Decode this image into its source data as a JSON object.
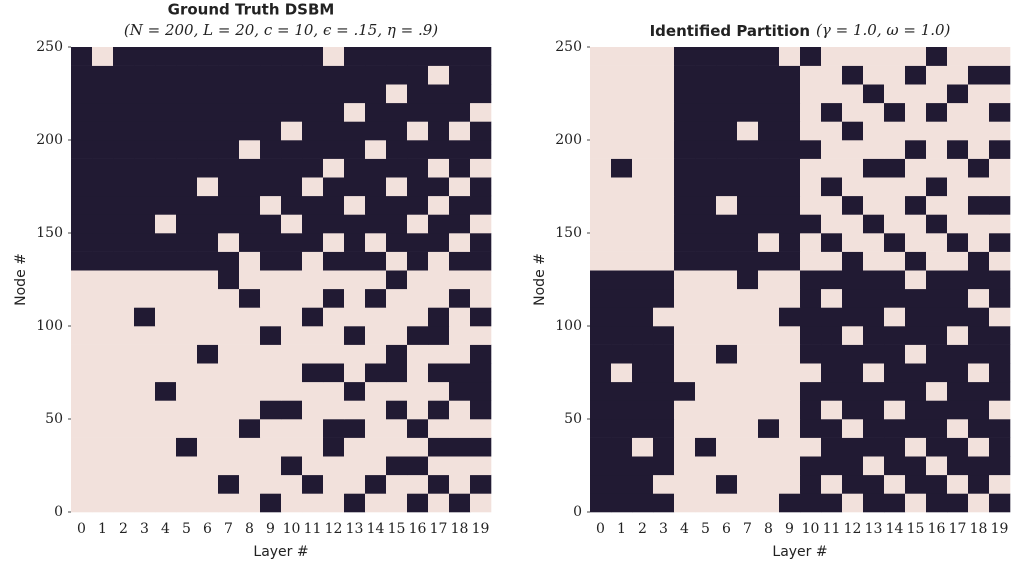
{
  "chart_data": [
    {
      "type": "heatmap",
      "title": "Ground Truth DSBM",
      "subtitle": "(N = 200, L = 20, c = 10, ϵ = .15, η = .9)",
      "x_label": "Layer #",
      "y_label": "Node #",
      "categories": [
        "0",
        "1",
        "2",
        "3",
        "4",
        "5",
        "6",
        "7",
        "8",
        "9",
        "10",
        "11",
        "12",
        "13",
        "14",
        "15",
        "16",
        "17",
        "18",
        "19"
      ],
      "ylim": [
        0,
        250
      ],
      "yticks": [
        0,
        50,
        100,
        150,
        200,
        250
      ],
      "colors": [
        "#f2e1dc",
        "#211a33"
      ],
      "values": [
        [
          0,
          0,
          0,
          0,
          0,
          0,
          0,
          0,
          0,
          1,
          0,
          0,
          0,
          1,
          0,
          0,
          1,
          0,
          1,
          0
        ],
        [
          0,
          0,
          0,
          0,
          0,
          0,
          0,
          1,
          0,
          0,
          0,
          1,
          0,
          0,
          1,
          0,
          0,
          1,
          0,
          1
        ],
        [
          0,
          0,
          0,
          0,
          0,
          0,
          0,
          0,
          0,
          0,
          1,
          0,
          0,
          0,
          0,
          1,
          1,
          0,
          0,
          0
        ],
        [
          0,
          0,
          0,
          0,
          0,
          1,
          0,
          0,
          0,
          0,
          0,
          0,
          1,
          0,
          0,
          0,
          0,
          1,
          1,
          1
        ],
        [
          0,
          0,
          0,
          0,
          0,
          0,
          0,
          0,
          1,
          0,
          0,
          0,
          1,
          1,
          0,
          0,
          1,
          0,
          0,
          0
        ],
        [
          0,
          0,
          0,
          0,
          0,
          0,
          0,
          0,
          0,
          1,
          1,
          0,
          0,
          0,
          0,
          1,
          0,
          1,
          0,
          1
        ],
        [
          0,
          0,
          0,
          0,
          1,
          0,
          0,
          0,
          0,
          0,
          0,
          0,
          0,
          1,
          0,
          0,
          0,
          0,
          1,
          1
        ],
        [
          0,
          0,
          0,
          0,
          0,
          0,
          0,
          0,
          0,
          0,
          0,
          1,
          1,
          0,
          1,
          1,
          0,
          1,
          1,
          1
        ],
        [
          0,
          0,
          0,
          0,
          0,
          0,
          1,
          0,
          0,
          0,
          0,
          0,
          0,
          0,
          0,
          1,
          0,
          0,
          0,
          1
        ],
        [
          0,
          0,
          0,
          0,
          0,
          0,
          0,
          0,
          0,
          1,
          0,
          0,
          0,
          1,
          0,
          0,
          1,
          1,
          0,
          0
        ],
        [
          0,
          0,
          0,
          1,
          0,
          0,
          0,
          0,
          0,
          0,
          0,
          1,
          0,
          0,
          0,
          0,
          0,
          1,
          0,
          1
        ],
        [
          0,
          0,
          0,
          0,
          0,
          0,
          0,
          0,
          1,
          0,
          0,
          0,
          1,
          0,
          1,
          0,
          0,
          0,
          1,
          0
        ],
        [
          0,
          0,
          0,
          0,
          0,
          0,
          0,
          1,
          0,
          0,
          0,
          0,
          0,
          0,
          0,
          1,
          0,
          0,
          0,
          0
        ],
        [
          1,
          1,
          1,
          1,
          1,
          1,
          1,
          1,
          0,
          1,
          1,
          0,
          1,
          1,
          1,
          0,
          1,
          0,
          1,
          1
        ],
        [
          1,
          1,
          1,
          1,
          1,
          1,
          1,
          0,
          1,
          1,
          1,
          1,
          0,
          1,
          0,
          1,
          1,
          1,
          0,
          1
        ],
        [
          1,
          1,
          1,
          1,
          0,
          1,
          1,
          1,
          1,
          1,
          0,
          1,
          1,
          1,
          1,
          1,
          0,
          1,
          1,
          0
        ],
        [
          1,
          1,
          1,
          1,
          1,
          1,
          1,
          1,
          1,
          0,
          1,
          1,
          1,
          0,
          1,
          1,
          1,
          0,
          1,
          1
        ],
        [
          1,
          1,
          1,
          1,
          1,
          1,
          0,
          1,
          1,
          1,
          1,
          0,
          1,
          1,
          1,
          0,
          1,
          1,
          0,
          1
        ],
        [
          1,
          1,
          1,
          1,
          1,
          1,
          1,
          1,
          1,
          1,
          1,
          1,
          0,
          1,
          1,
          1,
          1,
          0,
          1,
          0
        ],
        [
          1,
          1,
          1,
          1,
          1,
          1,
          1,
          1,
          0,
          1,
          1,
          1,
          1,
          1,
          0,
          1,
          1,
          1,
          1,
          1
        ],
        [
          1,
          1,
          1,
          1,
          1,
          1,
          1,
          1,
          1,
          1,
          0,
          1,
          1,
          1,
          1,
          1,
          0,
          1,
          0,
          1
        ],
        [
          1,
          1,
          1,
          1,
          1,
          1,
          1,
          1,
          1,
          1,
          1,
          1,
          1,
          0,
          1,
          1,
          1,
          1,
          1,
          0
        ],
        [
          1,
          1,
          1,
          1,
          1,
          1,
          1,
          1,
          1,
          1,
          1,
          1,
          1,
          1,
          1,
          0,
          1,
          1,
          1,
          1
        ],
        [
          1,
          1,
          1,
          1,
          1,
          1,
          1,
          1,
          1,
          1,
          1,
          1,
          1,
          1,
          1,
          1,
          1,
          0,
          1,
          1
        ],
        [
          1,
          0,
          1,
          1,
          1,
          1,
          1,
          1,
          1,
          1,
          1,
          1,
          0,
          1,
          1,
          1,
          1,
          1,
          1,
          1
        ]
      ]
    },
    {
      "type": "heatmap",
      "title": "Identified Partition",
      "subtitle": "(γ = 1.0, ω = 1.0)",
      "x_label": "Layer #",
      "y_label": "Node #",
      "categories": [
        "0",
        "1",
        "2",
        "3",
        "4",
        "5",
        "6",
        "7",
        "8",
        "9",
        "10",
        "11",
        "12",
        "13",
        "14",
        "15",
        "16",
        "17",
        "18",
        "19"
      ],
      "ylim": [
        0,
        250
      ],
      "yticks": [
        0,
        50,
        100,
        150,
        200,
        250
      ],
      "colors": [
        "#f2e1dc",
        "#211a33"
      ],
      "values": [
        [
          1,
          1,
          1,
          1,
          0,
          0,
          0,
          0,
          0,
          1,
          1,
          1,
          0,
          1,
          1,
          0,
          1,
          1,
          0,
          1
        ],
        [
          1,
          1,
          1,
          0,
          0,
          0,
          1,
          0,
          0,
          0,
          1,
          0,
          1,
          1,
          0,
          1,
          1,
          0,
          1,
          0
        ],
        [
          1,
          1,
          1,
          1,
          0,
          0,
          0,
          0,
          0,
          0,
          1,
          1,
          1,
          0,
          1,
          1,
          0,
          1,
          1,
          1
        ],
        [
          1,
          1,
          0,
          1,
          0,
          1,
          0,
          0,
          0,
          0,
          0,
          1,
          1,
          1,
          1,
          0,
          1,
          1,
          0,
          1
        ],
        [
          1,
          1,
          1,
          1,
          0,
          0,
          0,
          0,
          1,
          0,
          1,
          1,
          0,
          1,
          1,
          1,
          1,
          0,
          1,
          1
        ],
        [
          1,
          1,
          1,
          1,
          0,
          0,
          0,
          0,
          0,
          0,
          1,
          0,
          1,
          1,
          0,
          1,
          1,
          1,
          1,
          0
        ],
        [
          1,
          1,
          1,
          1,
          1,
          0,
          0,
          0,
          0,
          0,
          1,
          1,
          1,
          1,
          1,
          1,
          0,
          1,
          1,
          1
        ],
        [
          1,
          0,
          1,
          1,
          0,
          0,
          0,
          0,
          0,
          0,
          0,
          1,
          1,
          0,
          1,
          1,
          1,
          1,
          0,
          1
        ],
        [
          1,
          1,
          1,
          1,
          0,
          0,
          1,
          0,
          0,
          0,
          1,
          1,
          1,
          1,
          1,
          0,
          1,
          1,
          1,
          1
        ],
        [
          1,
          1,
          1,
          1,
          0,
          0,
          0,
          0,
          0,
          0,
          1,
          1,
          0,
          1,
          1,
          1,
          1,
          0,
          1,
          1
        ],
        [
          1,
          1,
          1,
          0,
          0,
          0,
          0,
          0,
          0,
          1,
          1,
          1,
          1,
          1,
          0,
          1,
          1,
          1,
          1,
          0
        ],
        [
          1,
          1,
          1,
          1,
          0,
          0,
          0,
          0,
          0,
          0,
          1,
          0,
          1,
          1,
          1,
          1,
          1,
          1,
          0,
          1
        ],
        [
          1,
          1,
          1,
          1,
          0,
          0,
          0,
          1,
          0,
          0,
          1,
          1,
          1,
          1,
          1,
          0,
          1,
          1,
          1,
          1
        ],
        [
          0,
          0,
          0,
          0,
          1,
          1,
          1,
          1,
          1,
          1,
          0,
          0,
          1,
          0,
          0,
          1,
          0,
          0,
          1,
          0
        ],
        [
          0,
          0,
          0,
          0,
          1,
          1,
          1,
          1,
          0,
          1,
          0,
          1,
          0,
          0,
          1,
          0,
          0,
          1,
          0,
          1
        ],
        [
          0,
          0,
          0,
          0,
          1,
          1,
          1,
          1,
          1,
          1,
          1,
          0,
          0,
          1,
          0,
          0,
          1,
          0,
          0,
          0
        ],
        [
          0,
          0,
          0,
          0,
          1,
          1,
          0,
          1,
          1,
          1,
          0,
          0,
          1,
          0,
          0,
          1,
          0,
          0,
          1,
          1
        ],
        [
          0,
          0,
          0,
          0,
          1,
          1,
          1,
          1,
          1,
          1,
          0,
          1,
          0,
          0,
          0,
          0,
          1,
          0,
          0,
          0
        ],
        [
          0,
          1,
          0,
          0,
          1,
          1,
          1,
          1,
          1,
          1,
          0,
          0,
          0,
          1,
          1,
          0,
          0,
          0,
          1,
          0
        ],
        [
          0,
          0,
          0,
          0,
          1,
          1,
          1,
          1,
          1,
          1,
          1,
          0,
          0,
          0,
          0,
          1,
          0,
          1,
          0,
          1
        ],
        [
          0,
          0,
          0,
          0,
          1,
          1,
          1,
          0,
          1,
          1,
          0,
          0,
          1,
          0,
          0,
          0,
          0,
          0,
          0,
          0
        ],
        [
          0,
          0,
          0,
          0,
          1,
          1,
          1,
          1,
          1,
          1,
          0,
          1,
          0,
          0,
          1,
          0,
          1,
          0,
          0,
          1
        ],
        [
          0,
          0,
          0,
          0,
          1,
          1,
          1,
          1,
          1,
          1,
          0,
          0,
          0,
          1,
          0,
          0,
          0,
          1,
          0,
          0
        ],
        [
          0,
          0,
          0,
          0,
          1,
          1,
          1,
          1,
          1,
          1,
          0,
          0,
          1,
          0,
          0,
          1,
          0,
          0,
          1,
          1
        ],
        [
          0,
          0,
          0,
          0,
          1,
          1,
          1,
          1,
          1,
          0,
          1,
          0,
          0,
          0,
          0,
          0,
          1,
          0,
          0,
          0
        ]
      ]
    }
  ]
}
